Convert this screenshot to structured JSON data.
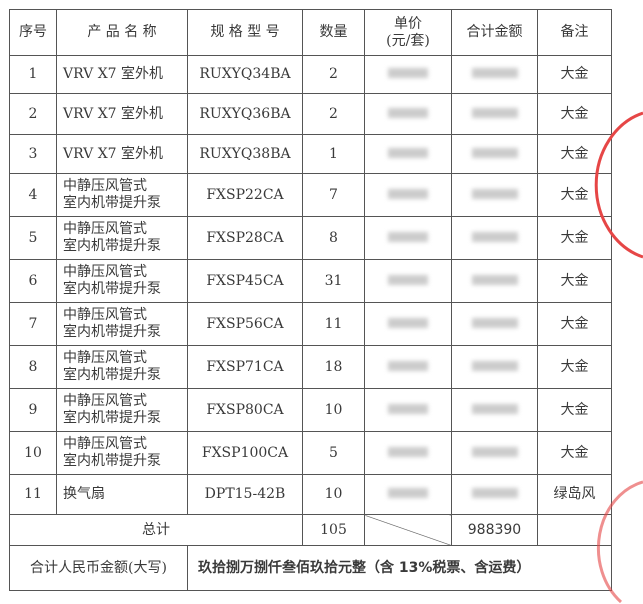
{
  "headers": [
    "序号",
    "产 品 名 称",
    "规 格 型 号",
    "数量",
    "单价\n(元/套)",
    "合计金额",
    "备注"
  ],
  "header_price_line1": "单价",
  "header_price_line2": "(元/套)",
  "rows": [
    {
      "no": "1",
      "name1": "VRV X7 室外机",
      "name2": "",
      "model": "RUXYQ34BA",
      "qty": "2",
      "note": "大金"
    },
    {
      "no": "2",
      "name1": "VRV X7 室外机",
      "name2": "",
      "model": "RUXYQ36BA",
      "qty": "2",
      "note": "大金"
    },
    {
      "no": "3",
      "name1": "VRV X7 室外机",
      "name2": "",
      "model": "RUXYQ38BA",
      "qty": "1",
      "note": "大金"
    },
    {
      "no": "4",
      "name1": "中静压风管式",
      "name2": "室内机带提升泵",
      "model": "FXSP22CA",
      "qty": "7",
      "note": "大金"
    },
    {
      "no": "5",
      "name1": "中静压风管式",
      "name2": "室内机带提升泵",
      "model": "FXSP28CA",
      "qty": "8",
      "note": "大金"
    },
    {
      "no": "6",
      "name1": "中静压风管式",
      "name2": "室内机带提升泵",
      "model": "FXSP45CA",
      "qty": "31",
      "note": "大金"
    },
    {
      "no": "7",
      "name1": "中静压风管式",
      "name2": "室内机带提升泵",
      "model": "FXSP56CA",
      "qty": "11",
      "note": "大金"
    },
    {
      "no": "8",
      "name1": "中静压风管式",
      "name2": "室内机带提升泵",
      "model": "FXSP71CA",
      "qty": "18",
      "note": "大金"
    },
    {
      "no": "9",
      "name1": "中静压风管式",
      "name2": "室内机带提升泵",
      "model": "FXSP80CA",
      "qty": "10",
      "note": "大金"
    },
    {
      "no": "10",
      "name1": "中静压风管式",
      "name2": "室内机带提升泵",
      "model": "FXSP100CA",
      "qty": "5",
      "note": "大金"
    },
    {
      "no": "11",
      "name1": "换气扇",
      "name2": "",
      "model": "DPT15-42B",
      "qty": "10",
      "note": "绿岛风"
    }
  ],
  "total": {
    "label": "总计",
    "qty": "105",
    "amount": "988390"
  },
  "words": {
    "label": "合计人民币金额(大写)",
    "value": "玖拾捌万捌仟叁佰玖拾元整（含 13%税票、含运费）"
  },
  "stamp_color": "#e64646"
}
